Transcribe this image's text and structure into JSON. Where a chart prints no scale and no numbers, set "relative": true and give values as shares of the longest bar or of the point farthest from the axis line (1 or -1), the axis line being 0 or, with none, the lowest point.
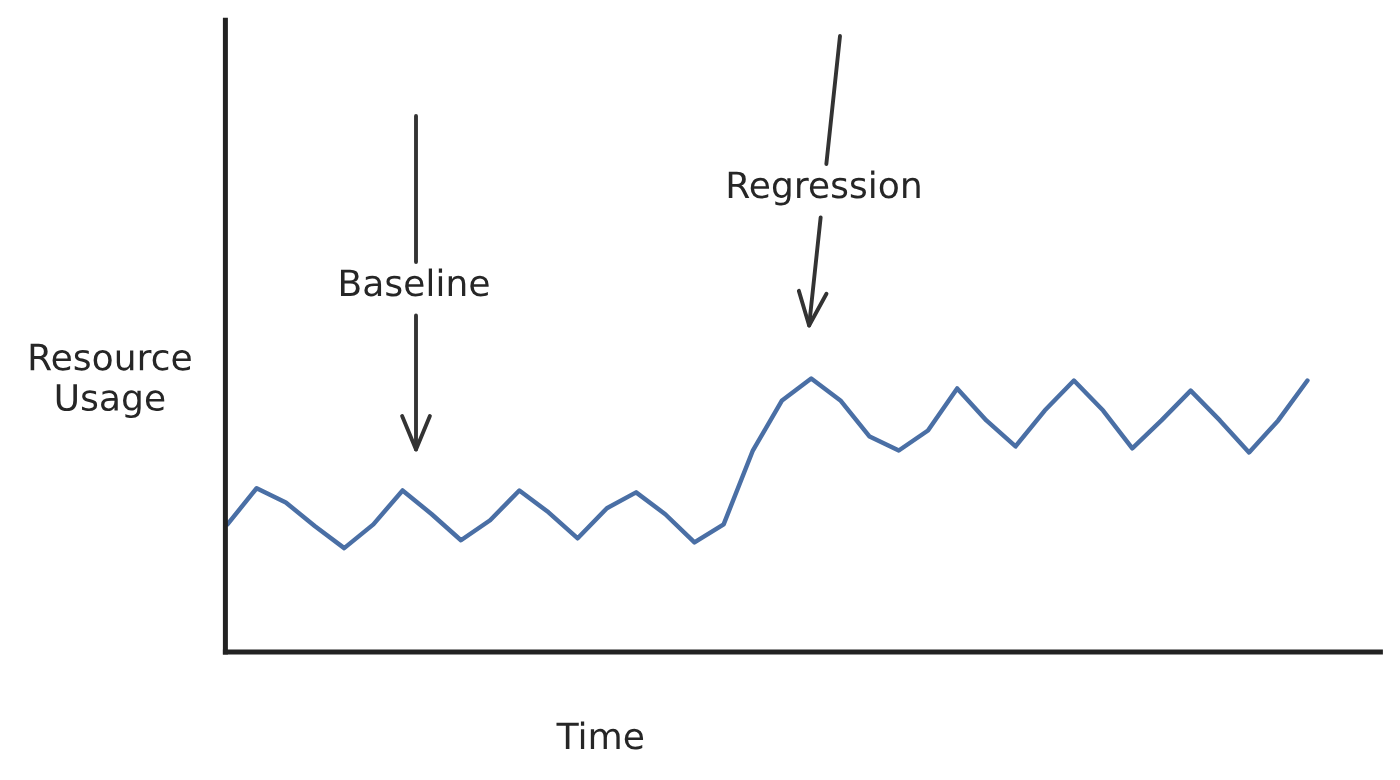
{
  "chart_data": {
    "type": "line",
    "relative": true,
    "xlabel": "Time",
    "ylabel": "Resource\nUsage",
    "categories": [
      null,
      null,
      null,
      null,
      null,
      null,
      null,
      null,
      null,
      null,
      null,
      null,
      null,
      null,
      null,
      null,
      null,
      null,
      null,
      null,
      null,
      null,
      null,
      null,
      null,
      null,
      null,
      null,
      null,
      null,
      null,
      null,
      null,
      null,
      null,
      null,
      null,
      null
    ],
    "series": [
      {
        "color": "#4a6fa5",
        "values": [
          0.467,
          0.599,
          0.547,
          0.46,
          0.38,
          0.467,
          0.591,
          0.504,
          0.409,
          0.482,
          0.591,
          0.511,
          0.416,
          0.526,
          0.584,
          0.504,
          0.401,
          0.467,
          0.737,
          0.92,
          1.0,
          0.92,
          0.788,
          0.737,
          0.81,
          0.964,
          0.847,
          0.752,
          0.883,
          0.993,
          0.883,
          0.745,
          0.847,
          0.956,
          0.847,
          0.73,
          0.847,
          0.993
        ]
      }
    ],
    "annotations": [
      "Baseline",
      "Regression"
    ],
    "grid": false,
    "legend": false,
    "marker": "none",
    "line_style": "solid"
  }
}
